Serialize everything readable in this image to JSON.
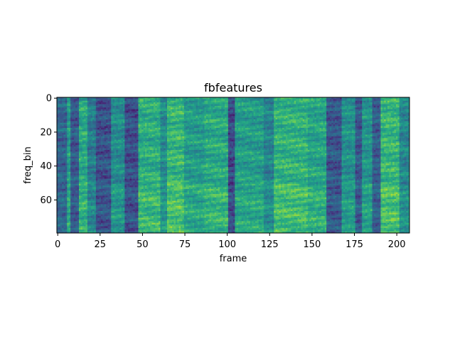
{
  "chart_data": {
    "type": "heatmap",
    "title": "fbfeatures",
    "xlabel": "frame",
    "ylabel": "freq_bin",
    "xlim": [
      0,
      207
    ],
    "ylim": [
      79.5,
      -0.5
    ],
    "x_ticks": [
      "0",
      "25",
      "50",
      "75",
      "100",
      "125",
      "150",
      "175",
      "200"
    ],
    "y_ticks": [
      "0",
      "20",
      "40",
      "60"
    ],
    "colormap": "viridis",
    "n_frames": 208,
    "n_freq_bins": 80,
    "value_range": [
      0,
      1
    ],
    "grid": false,
    "legend": "none",
    "column_energy": [
      {
        "frames": [
          0,
          5
        ],
        "level": 0.32
      },
      {
        "frames": [
          6,
          7
        ],
        "level": 0.55
      },
      {
        "frames": [
          8,
          12
        ],
        "level": 0.28
      },
      {
        "frames": [
          13,
          17
        ],
        "level": 0.6
      },
      {
        "frames": [
          18,
          22
        ],
        "level": 0.42
      },
      {
        "frames": [
          23,
          31
        ],
        "level": 0.25
      },
      {
        "frames": [
          32,
          39
        ],
        "level": 0.48
      },
      {
        "frames": [
          40,
          47
        ],
        "level": 0.24
      },
      {
        "frames": [
          48,
          60
        ],
        "level": 0.62
      },
      {
        "frames": [
          61,
          64
        ],
        "level": 0.48
      },
      {
        "frames": [
          65,
          74
        ],
        "level": 0.66
      },
      {
        "frames": [
          75,
          86
        ],
        "level": 0.55
      },
      {
        "frames": [
          87,
          100
        ],
        "level": 0.6
      },
      {
        "frames": [
          101,
          104
        ],
        "level": 0.22
      },
      {
        "frames": [
          105,
          121
        ],
        "level": 0.55
      },
      {
        "frames": [
          122,
          127
        ],
        "level": 0.45
      },
      {
        "frames": [
          128,
          147
        ],
        "level": 0.64
      },
      {
        "frames": [
          148,
          158
        ],
        "level": 0.58
      },
      {
        "frames": [
          159,
          167
        ],
        "level": 0.27
      },
      {
        "frames": [
          168,
          175
        ],
        "level": 0.5
      },
      {
        "frames": [
          176,
          179
        ],
        "level": 0.28
      },
      {
        "frames": [
          180,
          185
        ],
        "level": 0.52
      },
      {
        "frames": [
          186,
          190
        ],
        "level": 0.3
      },
      {
        "frames": [
          191,
          201
        ],
        "level": 0.66
      },
      {
        "frames": [
          202,
          207
        ],
        "level": 0.46
      }
    ]
  }
}
